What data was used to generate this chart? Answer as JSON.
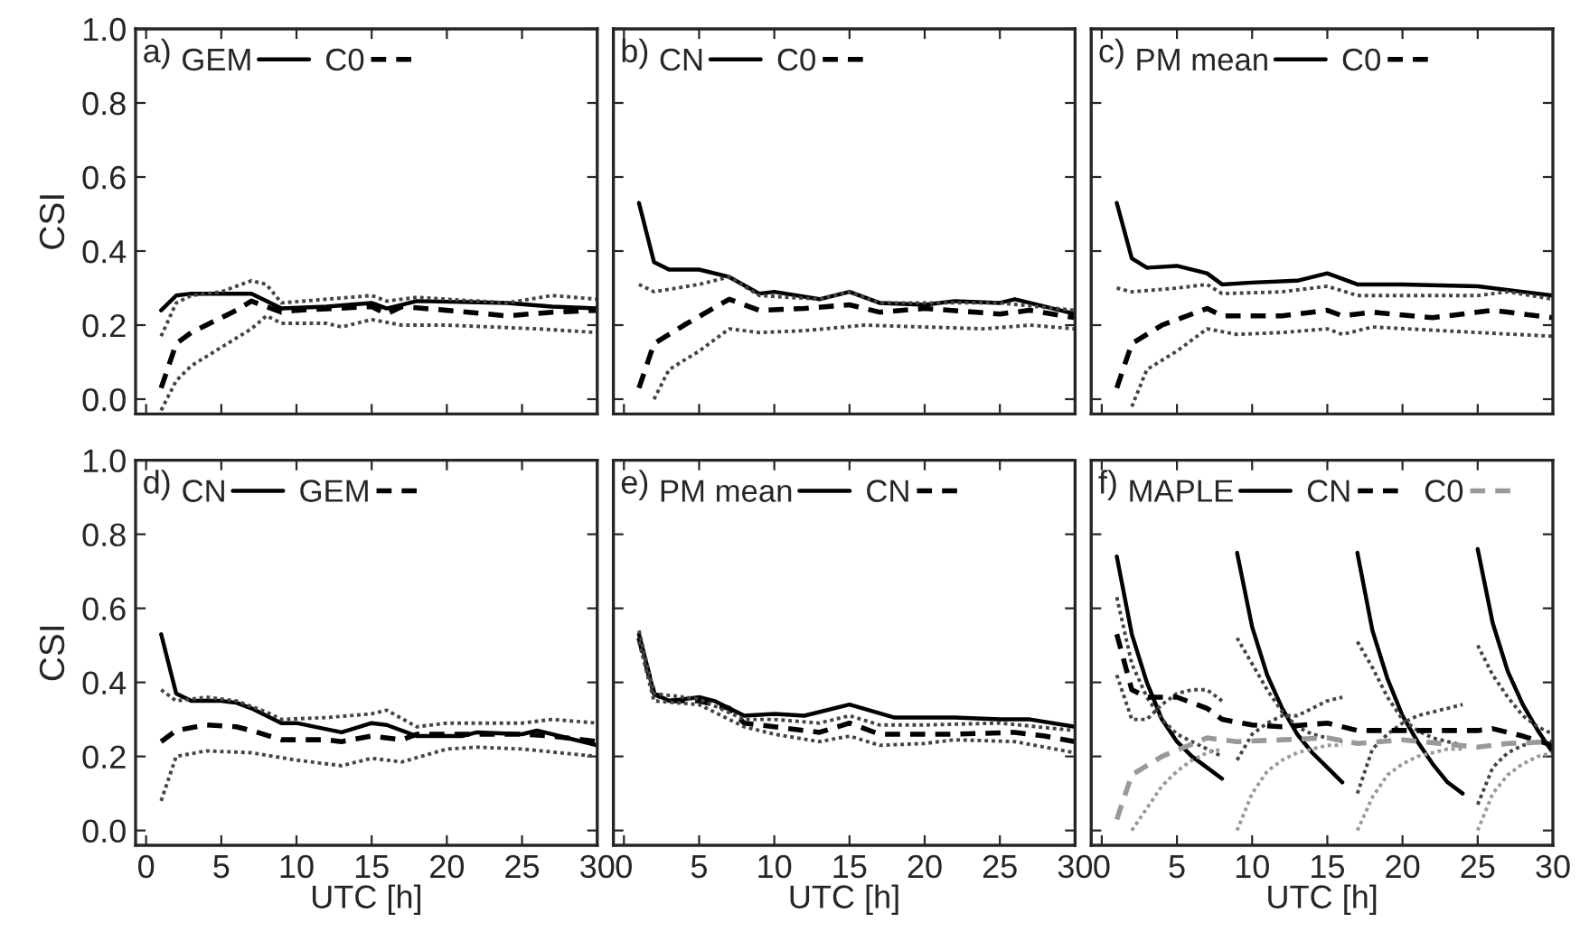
{
  "chart_data": [
    {
      "type": "line",
      "ylabel": "CSI",
      "annotations": [
        "a)"
      ],
      "legend": "top left",
      "tick_labels": "y",
      "xlim": [
        -0.7,
        30
      ],
      "xticks": [
        0,
        5,
        10,
        15,
        20,
        25,
        30
      ],
      "ylim": [
        -0.04,
        1.0
      ],
      "yticks": [
        {
          "value": 0,
          "label": "0.0"
        },
        {
          "value": 0.2,
          "label": "0.2"
        },
        {
          "value": 0.4,
          "label": "0.4"
        },
        {
          "value": 0.6,
          "label": "0.6"
        },
        {
          "value": 0.8,
          "label": "0.8"
        },
        {
          "value": 1.0,
          "label": "1.0"
        }
      ],
      "series": [
        {
          "name": "GEM",
          "color": "#000000",
          "line_style": "solid",
          "x": [
            1,
            2,
            3,
            5,
            7,
            8,
            9,
            12,
            15,
            16,
            18,
            24,
            27,
            30
          ],
          "values": [
            0.24,
            0.28,
            0.285,
            0.285,
            0.285,
            0.265,
            0.245,
            0.25,
            0.26,
            0.245,
            0.265,
            0.26,
            0.25,
            0.245
          ]
        },
        {
          "name": "C0",
          "color": "#000000",
          "line_style": "dashed",
          "x": [
            1,
            2,
            3,
            4,
            5,
            6,
            7,
            8,
            9,
            10,
            15,
            16,
            17,
            20,
            24,
            27,
            30
          ],
          "values": [
            0.03,
            0.15,
            0.18,
            0.2,
            0.22,
            0.24,
            0.265,
            0.25,
            0.235,
            0.24,
            0.25,
            0.23,
            0.25,
            0.24,
            0.225,
            0.235,
            0.24
          ]
        },
        {
          "color": "#444444",
          "line_style": "dotted",
          "x": [
            1,
            2,
            3,
            5,
            7,
            8,
            9,
            12,
            15,
            16,
            18,
            24,
            27,
            30
          ],
          "values": [
            0.17,
            0.26,
            0.28,
            0.29,
            0.32,
            0.31,
            0.26,
            0.27,
            0.28,
            0.265,
            0.275,
            0.26,
            0.28,
            0.27
          ]
        },
        {
          "color": "#444444",
          "line_style": "dotted",
          "x": [
            1,
            2,
            3,
            5,
            7,
            8,
            9,
            12,
            13,
            15,
            17,
            20,
            26,
            30
          ],
          "values": [
            -0.03,
            0.05,
            0.09,
            0.14,
            0.19,
            0.225,
            0.205,
            0.205,
            0.195,
            0.215,
            0.2,
            0.2,
            0.19,
            0.18
          ]
        }
      ]
    },
    {
      "type": "line",
      "annotations": [
        "b)"
      ],
      "legend": "top left",
      "tick_labels": false,
      "xlim": [
        -0.7,
        30
      ],
      "xticks": [
        0,
        5,
        10,
        15,
        20,
        25,
        30
      ],
      "ylim": [
        -0.04,
        1.0
      ],
      "yticks": [
        0,
        0.2,
        0.4,
        0.6,
        0.8,
        1.0
      ],
      "series": [
        {
          "name": "CN",
          "color": "#000000",
          "line_style": "solid",
          "x": [
            1,
            2,
            3,
            5,
            7,
            9,
            10,
            13,
            15,
            17,
            20,
            22,
            25,
            26,
            30
          ],
          "values": [
            0.53,
            0.37,
            0.35,
            0.35,
            0.33,
            0.285,
            0.29,
            0.27,
            0.29,
            0.26,
            0.255,
            0.265,
            0.26,
            0.27,
            0.23
          ]
        },
        {
          "name": "C0",
          "color": "#000000",
          "line_style": "dashed",
          "x": [
            1,
            2,
            4,
            7,
            9,
            12,
            15,
            17,
            20,
            25,
            27,
            30
          ],
          "values": [
            0.03,
            0.15,
            0.2,
            0.27,
            0.24,
            0.245,
            0.255,
            0.235,
            0.245,
            0.23,
            0.24,
            0.22
          ]
        },
        {
          "color": "#444444",
          "line_style": "dotted",
          "x": [
            1,
            2,
            5,
            7,
            9,
            13,
            15,
            17,
            25,
            30
          ],
          "values": [
            0.31,
            0.29,
            0.31,
            0.33,
            0.28,
            0.27,
            0.29,
            0.26,
            0.26,
            0.24
          ]
        },
        {
          "color": "#444444",
          "line_style": "dotted",
          "x": [
            2,
            3,
            5,
            7,
            9,
            12,
            16,
            20,
            24,
            27,
            30
          ],
          "values": [
            0.0,
            0.08,
            0.13,
            0.19,
            0.18,
            0.185,
            0.2,
            0.195,
            0.19,
            0.2,
            0.19
          ]
        }
      ]
    },
    {
      "type": "line",
      "annotations": [
        "c)"
      ],
      "legend": "top left",
      "tick_labels": false,
      "xlim": [
        -0.7,
        30
      ],
      "xticks": [
        0,
        5,
        10,
        15,
        20,
        25,
        30
      ],
      "ylim": [
        -0.04,
        1.0
      ],
      "yticks": [
        0,
        0.2,
        0.4,
        0.6,
        0.8,
        1.0
      ],
      "series": [
        {
          "name": "PM mean",
          "color": "#000000",
          "line_style": "solid",
          "x": [
            1,
            2,
            3,
            5,
            7,
            8,
            10,
            13,
            15,
            17,
            20,
            25,
            28,
            30
          ],
          "values": [
            0.53,
            0.38,
            0.355,
            0.36,
            0.34,
            0.31,
            0.315,
            0.32,
            0.34,
            0.31,
            0.31,
            0.305,
            0.29,
            0.28
          ]
        },
        {
          "name": "C0",
          "color": "#000000",
          "line_style": "dashed",
          "x": [
            1,
            2,
            4,
            7,
            8,
            12,
            15,
            16,
            18,
            22,
            26,
            30
          ],
          "values": [
            0.03,
            0.15,
            0.2,
            0.245,
            0.225,
            0.225,
            0.24,
            0.225,
            0.235,
            0.22,
            0.24,
            0.22
          ]
        },
        {
          "color": "#444444",
          "line_style": "dotted",
          "x": [
            1,
            2,
            5,
            7,
            8,
            12,
            15,
            17,
            25,
            27,
            30
          ],
          "values": [
            0.3,
            0.29,
            0.3,
            0.31,
            0.285,
            0.29,
            0.305,
            0.28,
            0.28,
            0.29,
            0.27
          ]
        },
        {
          "color": "#444444",
          "line_style": "dotted",
          "x": [
            2,
            3,
            5,
            7,
            9,
            12,
            15,
            16,
            18,
            25,
            30
          ],
          "values": [
            -0.02,
            0.08,
            0.13,
            0.19,
            0.175,
            0.18,
            0.19,
            0.175,
            0.195,
            0.18,
            0.17
          ]
        }
      ]
    },
    {
      "type": "line",
      "ylabel": "CSI",
      "xlabel": "UTC [h]",
      "annotations": [
        "d)"
      ],
      "legend": "top left",
      "xlim": [
        -0.7,
        30
      ],
      "xticks": [
        0,
        5,
        10,
        15,
        20,
        25,
        30
      ],
      "ylim": [
        -0.04,
        1.0
      ],
      "yticks": [
        {
          "value": 0,
          "label": "0.0"
        },
        {
          "value": 0.2,
          "label": "0.2"
        },
        {
          "value": 0.4,
          "label": "0.4"
        },
        {
          "value": 0.6,
          "label": "0.6"
        },
        {
          "value": 0.8,
          "label": "0.8"
        },
        {
          "value": 1.0,
          "label": "1.0"
        }
      ],
      "series": [
        {
          "name": "CN",
          "color": "#000000",
          "line_style": "solid",
          "x": [
            1,
            2,
            3,
            5,
            6,
            7,
            9,
            10,
            13,
            15,
            16,
            18,
            21,
            22,
            25,
            26,
            30
          ],
          "values": [
            0.53,
            0.37,
            0.35,
            0.35,
            0.345,
            0.33,
            0.29,
            0.29,
            0.265,
            0.29,
            0.285,
            0.255,
            0.255,
            0.265,
            0.26,
            0.27,
            0.23
          ]
        },
        {
          "name": "GEM",
          "color": "#000000",
          "line_style": "dashed",
          "x": [
            1,
            2,
            4,
            6,
            7,
            9,
            12,
            13,
            15,
            17,
            18,
            22,
            25,
            27,
            30
          ],
          "values": [
            0.24,
            0.27,
            0.285,
            0.28,
            0.27,
            0.245,
            0.245,
            0.24,
            0.255,
            0.245,
            0.26,
            0.26,
            0.26,
            0.255,
            0.24
          ]
        },
        {
          "color": "#444444",
          "line_style": "dotted",
          "x": [
            1,
            2,
            4,
            6,
            8,
            9,
            12,
            15,
            16,
            18,
            20,
            25,
            27,
            30
          ],
          "values": [
            0.38,
            0.35,
            0.36,
            0.35,
            0.32,
            0.3,
            0.305,
            0.315,
            0.325,
            0.28,
            0.29,
            0.29,
            0.3,
            0.29
          ]
        },
        {
          "color": "#444444",
          "line_style": "dotted",
          "x": [
            1,
            2,
            4,
            7,
            10,
            13,
            15,
            17,
            20,
            22,
            25,
            30
          ],
          "values": [
            0.08,
            0.2,
            0.215,
            0.21,
            0.19,
            0.175,
            0.195,
            0.185,
            0.22,
            0.225,
            0.22,
            0.2
          ]
        }
      ]
    },
    {
      "type": "line",
      "xlabel": "UTC [h]",
      "annotations": [
        "e)"
      ],
      "legend": "top left",
      "tick_labels": "x",
      "xlim": [
        -0.7,
        30
      ],
      "xticks": [
        0,
        5,
        10,
        15,
        20,
        25,
        30
      ],
      "ylim": [
        -0.04,
        1.0
      ],
      "yticks": [
        0,
        0.2,
        0.4,
        0.6,
        0.8,
        1.0
      ],
      "series": [
        {
          "name": "PM mean",
          "color": "#000000",
          "line_style": "solid",
          "x": [
            1,
            2,
            3,
            5,
            6,
            8,
            10,
            12,
            15,
            18,
            22,
            25,
            27,
            30
          ],
          "values": [
            0.53,
            0.37,
            0.35,
            0.36,
            0.35,
            0.31,
            0.315,
            0.31,
            0.34,
            0.305,
            0.305,
            0.3,
            0.3,
            0.28
          ]
        },
        {
          "name": "CN",
          "color": "#000000",
          "line_style": "dashed",
          "x": [
            1,
            2,
            3,
            5,
            7,
            8,
            10,
            13,
            15,
            17,
            22,
            26,
            28,
            30
          ],
          "values": [
            0.52,
            0.37,
            0.35,
            0.35,
            0.33,
            0.29,
            0.28,
            0.265,
            0.29,
            0.26,
            0.26,
            0.265,
            0.255,
            0.24
          ]
        },
        {
          "color": "#444444",
          "line_style": "dotted",
          "x": [
            1,
            2,
            5,
            8,
            10,
            13,
            15,
            17,
            20,
            25,
            30
          ],
          "values": [
            0.54,
            0.37,
            0.355,
            0.3,
            0.3,
            0.29,
            0.31,
            0.285,
            0.285,
            0.29,
            0.27
          ]
        },
        {
          "color": "#444444",
          "line_style": "dotted",
          "x": [
            1,
            2,
            5,
            8,
            10,
            13,
            15,
            17,
            20,
            22,
            26,
            30
          ],
          "values": [
            0.51,
            0.35,
            0.34,
            0.28,
            0.26,
            0.24,
            0.255,
            0.23,
            0.235,
            0.245,
            0.24,
            0.21
          ]
        }
      ]
    },
    {
      "type": "line",
      "xlabel": "UTC [h]",
      "annotations": [
        "f)"
      ],
      "legend": "top left",
      "tick_labels": "x",
      "xlim": [
        -0.7,
        30
      ],
      "xticks": [
        0,
        5,
        10,
        15,
        20,
        25,
        30
      ],
      "ylim": [
        -0.04,
        1.0
      ],
      "yticks": [
        0,
        0.2,
        0.4,
        0.6,
        0.8,
        1.0
      ],
      "series": [
        {
          "name": "MAPLE",
          "color": "#000000",
          "line_style": "solid",
          "x": [
            1,
            2,
            3,
            4,
            5,
            6,
            7,
            8,
            8.5,
            9,
            10,
            11,
            12,
            13,
            14,
            15,
            16,
            16.5,
            17,
            18,
            19,
            20,
            21,
            22,
            23,
            24,
            24.5,
            25,
            26,
            27,
            28,
            29,
            30
          ],
          "values": [
            0.74,
            0.53,
            0.4,
            0.3,
            0.24,
            0.2,
            0.17,
            0.14,
            null,
            0.75,
            0.55,
            0.42,
            0.33,
            0.26,
            0.21,
            0.17,
            0.13,
            null,
            0.75,
            0.54,
            0.41,
            0.31,
            0.24,
            0.18,
            0.13,
            0.1,
            null,
            0.76,
            0.56,
            0.43,
            0.34,
            0.27,
            0.21
          ]
        },
        {
          "color": "#444444",
          "line_style": "dotted",
          "x": [
            1,
            2,
            3,
            4,
            5,
            6,
            7,
            8,
            8.5,
            9,
            10,
            11,
            12,
            13,
            14,
            15,
            16,
            16.5,
            17,
            18,
            19,
            20,
            21,
            22,
            23,
            24,
            24.5,
            25,
            26,
            27,
            28,
            29,
            30
          ],
          "values": [
            0.63,
            0.45,
            0.36,
            0.3,
            0.26,
            0.24,
            0.22,
            0.2,
            null,
            0.52,
            0.45,
            0.38,
            0.32,
            0.28,
            0.26,
            0.25,
            0.24,
            null,
            0.51,
            0.44,
            0.36,
            0.3,
            0.27,
            0.25,
            0.24,
            0.23,
            null,
            0.5,
            0.42,
            0.36,
            0.31,
            0.28,
            0.26
          ]
        },
        {
          "color": "#444444",
          "line_style": "dotted",
          "x": [
            1,
            2,
            3,
            4,
            5,
            6,
            7,
            8,
            8.5,
            9,
            10,
            11,
            12,
            13,
            14,
            15,
            16,
            16.5,
            17,
            18,
            19,
            20,
            21,
            22,
            23,
            24,
            24.5,
            25,
            26,
            27,
            28,
            29,
            30
          ],
          "values": [
            0.42,
            0.3,
            0.3,
            0.34,
            0.37,
            0.38,
            0.38,
            0.35,
            null,
            0.19,
            0.26,
            0.29,
            0.31,
            0.31,
            0.33,
            0.35,
            0.36,
            null,
            0.1,
            0.22,
            0.26,
            0.29,
            0.31,
            0.32,
            0.33,
            0.34,
            null,
            0.07,
            0.17,
            0.21,
            0.23,
            0.24,
            0.24
          ]
        },
        {
          "color": "#999999",
          "line_style": "dotted",
          "x": [
            2,
            3,
            4,
            5,
            6,
            7,
            8,
            8.5,
            9,
            10,
            11,
            12,
            13,
            14,
            15,
            16,
            16.5,
            17,
            18,
            19,
            20,
            21,
            22,
            23,
            24,
            24.5,
            25,
            26,
            27,
            28,
            29,
            30
          ],
          "values": [
            0.0,
            0.06,
            0.12,
            0.16,
            0.19,
            0.21,
            0.22,
            null,
            0.0,
            0.1,
            0.16,
            0.19,
            0.21,
            0.22,
            0.23,
            0.23,
            null,
            0.0,
            0.09,
            0.15,
            0.18,
            0.2,
            0.21,
            0.22,
            0.22,
            null,
            0.0,
            0.1,
            0.15,
            0.18,
            0.2,
            0.21
          ]
        },
        {
          "name": "CN",
          "color": "#000000",
          "line_style": "dashed",
          "x": [
            1,
            2,
            3,
            5,
            7,
            8,
            10,
            12,
            15,
            17,
            20,
            25,
            26,
            28,
            30
          ],
          "values": [
            0.53,
            0.38,
            0.36,
            0.36,
            0.33,
            0.3,
            0.285,
            0.28,
            0.29,
            0.27,
            0.27,
            0.27,
            0.275,
            0.255,
            0.23
          ]
        },
        {
          "name": "C0",
          "color": "#999999",
          "line_style": "dashed",
          "x": [
            1,
            2,
            4,
            7,
            9,
            12,
            15,
            17,
            20,
            25,
            27,
            30
          ],
          "values": [
            0.03,
            0.15,
            0.2,
            0.25,
            0.24,
            0.245,
            0.25,
            0.235,
            0.245,
            0.225,
            0.235,
            0.24
          ]
        }
      ]
    }
  ]
}
